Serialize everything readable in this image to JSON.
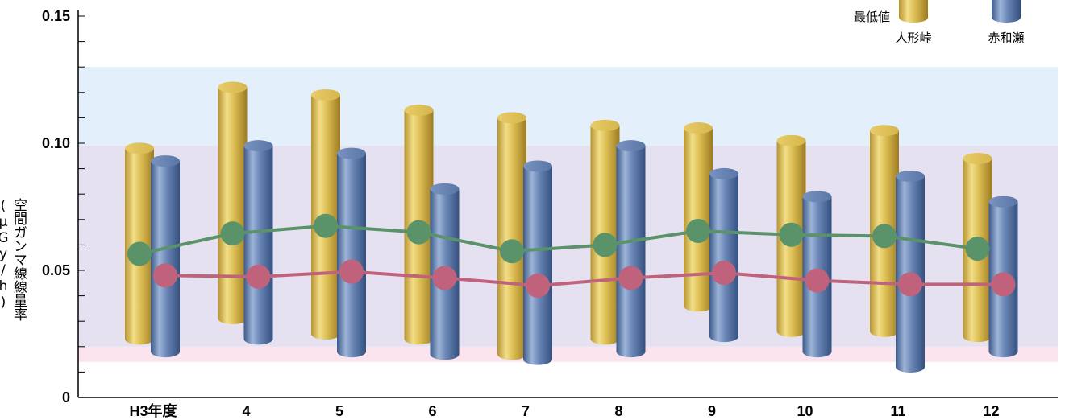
{
  "chart_data": {
    "type": "bar",
    "ylabel": "空間ガンマ線線量率(μGy/h)",
    "ylim": [
      0,
      0.15
    ],
    "yticks": [
      {
        "value": 0.15,
        "label": "0.15"
      },
      {
        "value": 0.1,
        "label": "0.10"
      },
      {
        "value": 0.05,
        "label": "0.05"
      },
      {
        "value": 0,
        "label": "0"
      }
    ],
    "categories": [
      "H3年度",
      "4",
      "5",
      "6",
      "7",
      "8",
      "9",
      "10",
      "11",
      "12"
    ],
    "bands": [
      {
        "from": 0.014,
        "to": 0.02,
        "color": "#fbe4ee"
      },
      {
        "from": 0.02,
        "to": 0.099,
        "color": "#e6e1f0"
      },
      {
        "from": 0.099,
        "to": 0.13,
        "color": "#e3effa"
      }
    ],
    "series": [
      {
        "name": "人形峠",
        "kind": "range",
        "color": "#e2c556",
        "min": [
          0.023,
          0.031,
          0.025,
          0.023,
          0.017,
          0.023,
          0.036,
          0.026,
          0.026,
          0.024
        ],
        "max": [
          0.098,
          0.122,
          0.119,
          0.113,
          0.11,
          0.107,
          0.106,
          0.101,
          0.105,
          0.094
        ]
      },
      {
        "name": "赤和瀬",
        "kind": "range",
        "color": "#6a86b6",
        "min": [
          0.018,
          0.023,
          0.018,
          0.017,
          0.015,
          0.018,
          0.024,
          0.018,
          0.012,
          0.018
        ],
        "max": [
          0.093,
          0.099,
          0.096,
          0.082,
          0.091,
          0.099,
          0.088,
          0.079,
          0.087,
          0.077
        ]
      },
      {
        "kind": "line",
        "color": "#5a936a",
        "values": [
          0.0565,
          0.0645,
          0.0675,
          0.065,
          0.0575,
          0.06,
          0.0655,
          0.064,
          0.0635,
          0.0585
        ]
      },
      {
        "kind": "line",
        "color": "#c0627c",
        "values": [
          0.048,
          0.0475,
          0.0495,
          0.047,
          0.044,
          0.047,
          0.049,
          0.046,
          0.0445,
          0.0445
        ]
      }
    ],
    "legend": {
      "position": "top-right",
      "min_label": "最低値",
      "labels": [
        "人形峠",
        "赤和瀬"
      ]
    },
    "grid": false
  }
}
